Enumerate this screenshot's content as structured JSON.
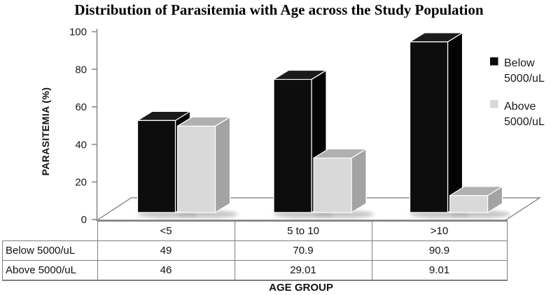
{
  "chart_data": {
    "type": "bar",
    "style": "3d-clustered-column",
    "title": "Distribution of Parasitemia with Age across the Study Population",
    "xlabel": "AGE GROUP",
    "ylabel": "PARASITEMIA (%)",
    "categories": [
      "<5",
      "5 to 10",
      ">10"
    ],
    "series": [
      {
        "name": "Below 5000/uL",
        "values": [
          49,
          70.9,
          90.9
        ],
        "face_colors": {
          "front": "#0d0d0d",
          "top": "#1b1b1b",
          "side": "#040404"
        }
      },
      {
        "name": "Above 5000/uL",
        "values": [
          46,
          29.01,
          9.01
        ],
        "face_colors": {
          "front": "#d9d9d9",
          "top": "#b0b0b0",
          "side": "#a3a3a3"
        }
      }
    ],
    "ylim": [
      0,
      100
    ],
    "yticks": [
      0,
      20,
      40,
      60,
      80,
      100
    ],
    "grid": false,
    "legend_position": "right",
    "data_table_shown": true
  },
  "colors": {
    "axis_line": "#8c8c8c",
    "floor_line": "#8c8c8c",
    "table_border": "#7f7f7f",
    "text": "#1a1a1a",
    "shadow": "#a8a8a8",
    "background": "#ffffff"
  }
}
